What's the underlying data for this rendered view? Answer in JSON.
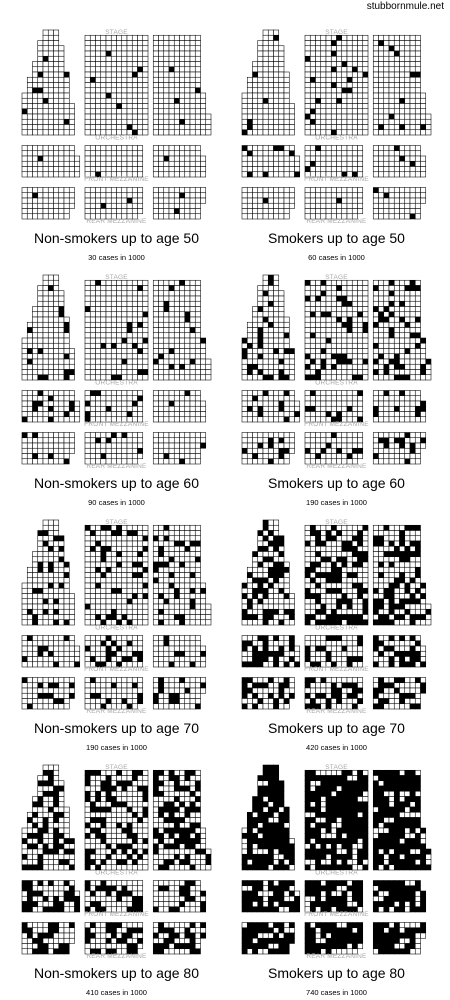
{
  "credit": "stubbornmule.net",
  "seating_labels": {
    "stage": "STAGE",
    "orchestra": "ORCHESTRA",
    "front_mezzanine": "FRONT MEZZANINE",
    "rear_mezzanine": "REAR MEZZANINE"
  },
  "colors": {
    "case_seat": "#000000",
    "empty_seat": "#ffffff",
    "seat_border": "#000000",
    "section_label": "#a8a8a8"
  },
  "chart_data": [
    {
      "type": "waffle",
      "title": "Non-smokers up to age 50",
      "subtitle": "30 cases in 1000",
      "cases": 30,
      "total": 1000,
      "group": "Non-smokers",
      "age": 50
    },
    {
      "type": "waffle",
      "title": "Smokers up to age 50",
      "subtitle": "60 cases in 1000",
      "cases": 60,
      "total": 1000,
      "group": "Smokers",
      "age": 50
    },
    {
      "type": "waffle",
      "title": "Non-smokers up to age 60",
      "subtitle": "90 cases in 1000",
      "cases": 90,
      "total": 1000,
      "group": "Non-smokers",
      "age": 60
    },
    {
      "type": "waffle",
      "title": "Smokers up to age 60",
      "subtitle": "190 cases in 1000",
      "cases": 190,
      "total": 1000,
      "group": "Smokers",
      "age": 60
    },
    {
      "type": "waffle",
      "title": "Non-smokers up to age 70",
      "subtitle": "190 cases in 1000",
      "cases": 190,
      "total": 1000,
      "group": "Non-smokers",
      "age": 70
    },
    {
      "type": "waffle",
      "title": "Smokers up to age 70",
      "subtitle": "420 cases in 1000",
      "cases": 420,
      "total": 1000,
      "group": "Smokers",
      "age": 70
    },
    {
      "type": "waffle",
      "title": "Non-smokers up to age 80",
      "subtitle": "410 cases in 1000",
      "cases": 410,
      "total": 1000,
      "group": "Non-smokers",
      "age": 80
    },
    {
      "type": "waffle",
      "title": "Smokers up to age 80",
      "subtitle": "740 cases in 1000",
      "cases": 740,
      "total": 1000,
      "group": "Smokers",
      "age": 80
    }
  ]
}
